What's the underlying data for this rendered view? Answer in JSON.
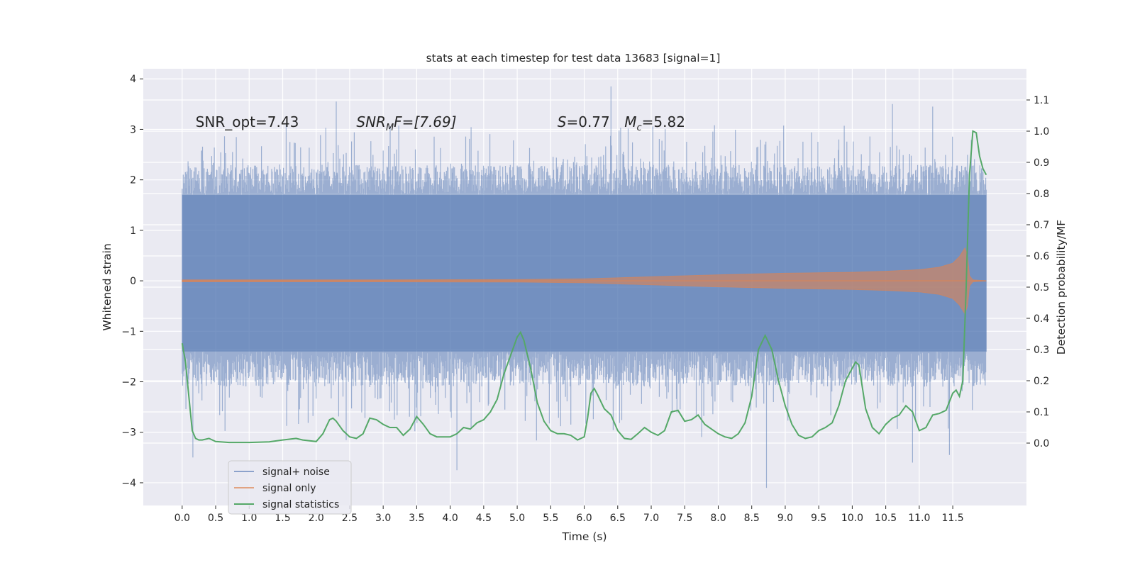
{
  "chart_data": {
    "type": "line",
    "title": "stats at each timestep for test data 13683 [signal=1]",
    "xlabel": "Time (s)",
    "ylabel": "Whitened strain",
    "y2label": "Detection probability/MF",
    "xlim": [
      -0.58,
      12.6
    ],
    "ylim": [
      -4.45,
      4.2
    ],
    "y2lim": [
      -0.2,
      1.2
    ],
    "x_ticks": [
      0.0,
      0.5,
      1.0,
      1.5,
      2.0,
      2.5,
      3.0,
      3.5,
      4.0,
      4.5,
      5.0,
      5.5,
      6.0,
      6.5,
      7.0,
      7.5,
      8.0,
      8.5,
      9.0,
      9.5,
      10.0,
      10.5,
      11.0,
      11.5
    ],
    "x_tick_labels": [
      "0.0",
      "0.5",
      "1.0",
      "1.5",
      "2.0",
      "2.5",
      "3.0",
      "3.5",
      "4.0",
      "4.5",
      "5.0",
      "5.5",
      "6.0",
      "6.5",
      "7.0",
      "7.5",
      "8.0",
      "8.5",
      "9.0",
      "9.5",
      "10.0",
      "10.5",
      "11.0",
      "11.5"
    ],
    "y_ticks": [
      -4,
      -3,
      -2,
      -1,
      0,
      1,
      2,
      3,
      4
    ],
    "y_tick_labels": [
      "−4",
      "−3",
      "−2",
      "−1",
      "0",
      "1",
      "2",
      "3",
      "4"
    ],
    "y2_ticks": [
      0.0,
      0.1,
      0.2,
      0.3,
      0.4,
      0.5,
      0.6,
      0.7,
      0.8,
      0.9,
      1.0,
      1.1
    ],
    "y2_tick_labels": [
      "0.0",
      "0.1",
      "0.2",
      "0.3",
      "0.4",
      "0.5",
      "0.6",
      "0.7",
      "0.8",
      "0.9",
      "1.0",
      "1.1"
    ],
    "grid": true,
    "legend_position": "lower-left",
    "annotations": [
      {
        "text": "SNR_opt=7.43",
        "x": 0.2,
        "y": 3.05
      },
      {
        "text": "SNR_MF=[7.69]",
        "x": 2.6,
        "y": 3.05,
        "main": "SNR",
        "sub": "M",
        "tail": "F=[7.69]"
      },
      {
        "text": "S=0.77",
        "x": 5.6,
        "y": 3.05,
        "main": "S",
        "tail": "=0.77"
      },
      {
        "text": "M_c=5.82",
        "x": 6.6,
        "y": 3.05,
        "main": "M",
        "sub": "c",
        "tail": "=5.82"
      }
    ],
    "colors": {
      "background": "#eaeaf2",
      "grid": "#ffffff",
      "noise": "#4c72b0",
      "signal": "#dd8452",
      "stats": "#55a868",
      "text": "#262626"
    },
    "series": [
      {
        "name": "signal+ noise",
        "x_range": [
          0.0,
          12.0
        ],
        "envelope_abs_max": 3.85,
        "upper_typical": 2.3,
        "lower_typical": -2.1,
        "dense_band": [
          -1.4,
          1.7
        ],
        "extremes": [
          [
            6.4,
            3.85
          ],
          [
            8.72,
            -4.1
          ],
          [
            4.1,
            -3.75
          ],
          [
            0.16,
            -3.5
          ],
          [
            10.9,
            -3.6
          ],
          [
            11.45,
            -3.45
          ],
          [
            2.3,
            3.55
          ],
          [
            10.6,
            3.5
          ],
          [
            11.2,
            3.45
          ]
        ]
      },
      {
        "name": "signal only",
        "x": [
          0.0,
          3.0,
          5.0,
          6.0,
          7.0,
          8.0,
          9.0,
          10.0,
          10.5,
          11.0,
          11.3,
          11.5,
          11.6,
          11.68,
          11.72,
          11.75,
          11.8,
          12.0
        ],
        "amplitude": [
          0.02,
          0.02,
          0.025,
          0.04,
          0.08,
          0.12,
          0.15,
          0.17,
          0.19,
          0.22,
          0.27,
          0.35,
          0.48,
          0.65,
          0.5,
          0.1,
          0.02,
          0.0
        ]
      },
      {
        "name": "signal statistics",
        "axis": "right",
        "x": [
          0.0,
          0.05,
          0.1,
          0.15,
          0.2,
          0.25,
          0.3,
          0.4,
          0.5,
          0.7,
          1.0,
          1.3,
          1.5,
          1.7,
          1.8,
          2.0,
          2.1,
          2.2,
          2.25,
          2.3,
          2.4,
          2.5,
          2.6,
          2.7,
          2.8,
          2.9,
          3.0,
          3.1,
          3.2,
          3.3,
          3.4,
          3.5,
          3.6,
          3.7,
          3.8,
          3.9,
          4.0,
          4.1,
          4.2,
          4.3,
          4.4,
          4.5,
          4.6,
          4.7,
          4.8,
          4.9,
          5.0,
          5.05,
          5.1,
          5.2,
          5.3,
          5.4,
          5.5,
          5.6,
          5.7,
          5.8,
          5.9,
          6.0,
          6.05,
          6.1,
          6.15,
          6.2,
          6.3,
          6.4,
          6.5,
          6.6,
          6.7,
          6.8,
          6.9,
          7.0,
          7.1,
          7.2,
          7.3,
          7.4,
          7.5,
          7.6,
          7.7,
          7.8,
          7.9,
          8.0,
          8.1,
          8.2,
          8.3,
          8.4,
          8.5,
          8.6,
          8.7,
          8.8,
          8.9,
          9.0,
          9.1,
          9.2,
          9.3,
          9.4,
          9.5,
          9.6,
          9.7,
          9.8,
          9.9,
          10.0,
          10.05,
          10.1,
          10.2,
          10.3,
          10.4,
          10.5,
          10.6,
          10.7,
          10.8,
          10.9,
          11.0,
          11.1,
          11.2,
          11.3,
          11.4,
          11.5,
          11.55,
          11.6,
          11.65,
          11.7,
          11.75,
          11.8,
          11.85,
          11.9,
          11.95,
          12.0
        ],
        "values": [
          0.32,
          0.26,
          0.15,
          0.04,
          0.015,
          0.01,
          0.01,
          0.015,
          0.005,
          0.002,
          0.002,
          0.004,
          0.01,
          0.015,
          0.01,
          0.005,
          0.03,
          0.075,
          0.08,
          0.07,
          0.04,
          0.02,
          0.015,
          0.03,
          0.08,
          0.075,
          0.06,
          0.05,
          0.05,
          0.025,
          0.045,
          0.085,
          0.06,
          0.03,
          0.02,
          0.02,
          0.02,
          0.03,
          0.05,
          0.045,
          0.065,
          0.075,
          0.1,
          0.14,
          0.22,
          0.28,
          0.34,
          0.355,
          0.33,
          0.24,
          0.13,
          0.07,
          0.04,
          0.03,
          0.03,
          0.025,
          0.01,
          0.02,
          0.08,
          0.16,
          0.175,
          0.155,
          0.11,
          0.09,
          0.04,
          0.015,
          0.012,
          0.03,
          0.05,
          0.035,
          0.025,
          0.04,
          0.1,
          0.105,
          0.07,
          0.075,
          0.09,
          0.06,
          0.045,
          0.03,
          0.02,
          0.015,
          0.03,
          0.065,
          0.15,
          0.3,
          0.345,
          0.3,
          0.2,
          0.12,
          0.06,
          0.025,
          0.015,
          0.02,
          0.04,
          0.05,
          0.065,
          0.12,
          0.2,
          0.24,
          0.26,
          0.25,
          0.11,
          0.05,
          0.03,
          0.06,
          0.08,
          0.09,
          0.12,
          0.1,
          0.04,
          0.05,
          0.09,
          0.095,
          0.105,
          0.16,
          0.17,
          0.15,
          0.2,
          0.5,
          0.86,
          1.0,
          0.995,
          0.92,
          0.88,
          0.86
        ]
      }
    ]
  }
}
